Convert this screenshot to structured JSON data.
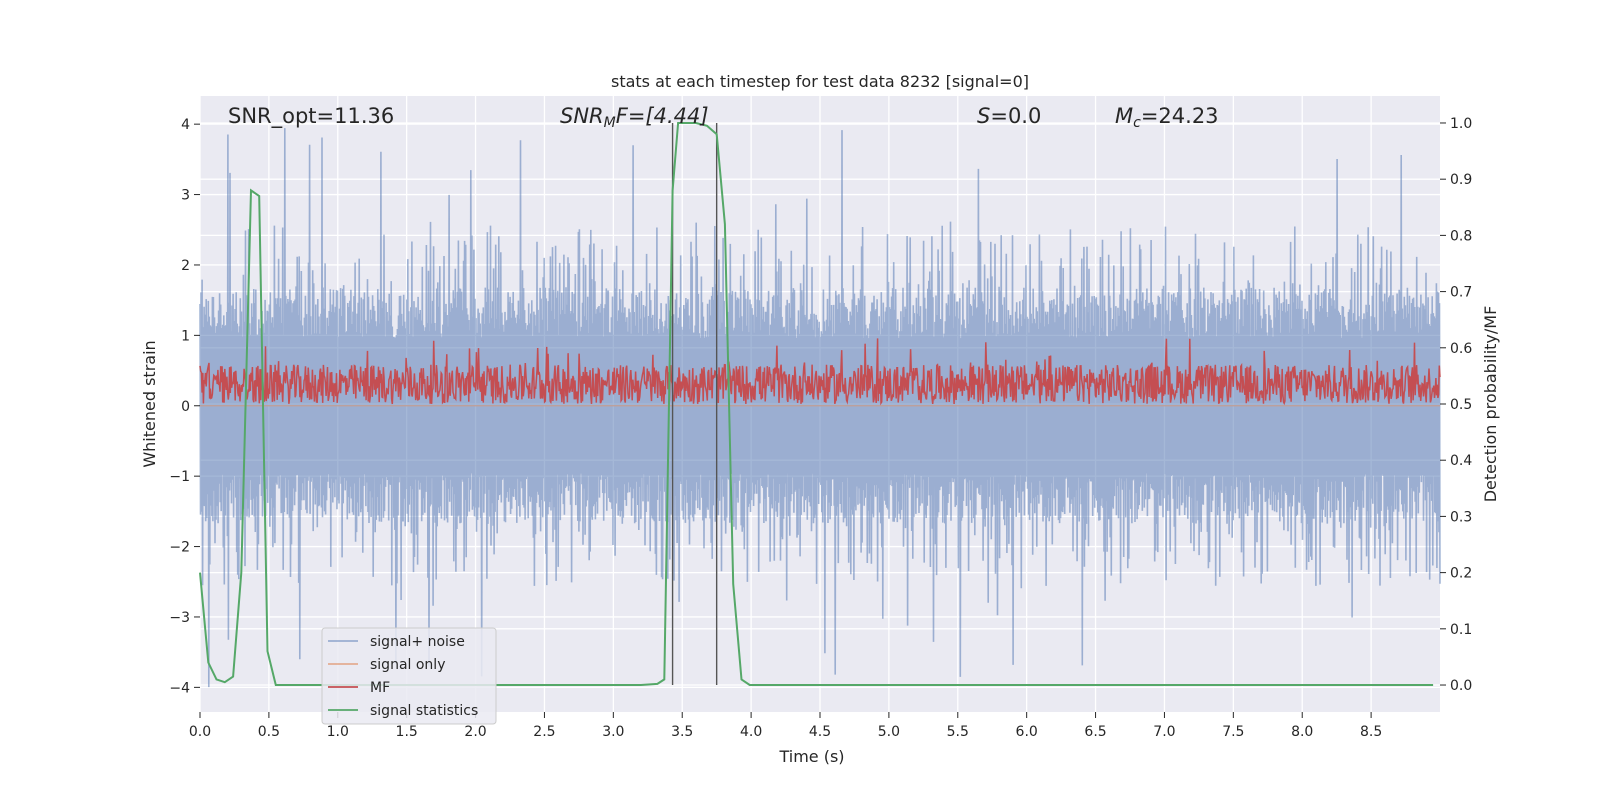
{
  "chart_data": {
    "type": "line",
    "title": "stats at each timestep for test data 8232 [signal=0]",
    "xlabel": "Time (s)",
    "ylabel": "Whitened strain",
    "y2label": "Detection probability/MF",
    "xlim": [
      0.0,
      9.0
    ],
    "ylim": [
      -4.35,
      4.4
    ],
    "y2lim": [
      -0.048,
      1.048
    ],
    "xticks": [
      0.0,
      0.5,
      1.0,
      1.5,
      2.0,
      2.5,
      3.0,
      3.5,
      4.0,
      4.5,
      5.0,
      5.5,
      6.0,
      6.5,
      7.0,
      7.5,
      8.0,
      8.5
    ],
    "xtick_labels": [
      "0.0",
      "0.5",
      "1.0",
      "1.5",
      "2.0",
      "2.5",
      "3.0",
      "3.5",
      "4.0",
      "4.5",
      "5.0",
      "5.5",
      "6.0",
      "6.5",
      "7.0",
      "7.5",
      "8.0",
      "8.5"
    ],
    "yticks": [
      4,
      3,
      2,
      1,
      0,
      -1,
      -2,
      -3,
      -4
    ],
    "ytick_labels": [
      "4",
      "3",
      "2",
      "1",
      "0",
      "−1",
      "−2",
      "−3",
      "−4"
    ],
    "y2ticks": [
      1.0,
      0.9,
      0.8,
      0.7,
      0.6,
      0.5,
      0.4,
      0.3,
      0.2,
      0.1,
      0.0
    ],
    "y2tick_labels": [
      "1.0",
      "0.9",
      "0.8",
      "0.7",
      "0.6",
      "0.5",
      "0.4",
      "0.3",
      "0.2",
      "0.1",
      "0.0"
    ],
    "annotations": {
      "snr_opt": "SNR_opt=11.36",
      "snr_mf_main": "SNR",
      "snr_mf_sub": "M",
      "snr_mf_rest": "F=[4.44]",
      "s_main": "S",
      "s_rest": "=0.0",
      "mc_main": "M",
      "mc_sub": "c",
      "mc_rest": "=24.23"
    },
    "vlines": [
      3.43,
      3.75
    ],
    "series": [
      {
        "name": "signal+ noise",
        "color": "#4c72b0",
        "opacity": 0.5,
        "axis": "left",
        "approx_band": {
          "upper_typical": 1.6,
          "lower_typical": -1.6,
          "spike_max": 4.0,
          "spike_min": -3.9
        }
      },
      {
        "name": "signal only",
        "color": "#dd8452",
        "opacity": 0.5,
        "axis": "left",
        "values_note": "flat at 0"
      },
      {
        "name": "MF",
        "color": "#c44e52",
        "axis": "right",
        "approx_band": {
          "baseline": 0.5,
          "typical_max": 0.55,
          "spike_max": 0.62
        }
      },
      {
        "name": "signal statistics",
        "color": "#55a868",
        "axis": "right",
        "x": [
          0.0,
          0.06,
          0.12,
          0.18,
          0.24,
          0.3,
          0.37,
          0.43,
          0.49,
          0.55,
          0.8,
          1.5,
          2.5,
          3.2,
          3.32,
          3.37,
          3.43,
          3.47,
          3.53,
          3.6,
          3.68,
          3.75,
          3.81,
          3.87,
          3.93,
          3.99,
          4.5,
          6.0,
          8.0,
          8.95
        ],
        "y": [
          0.2,
          0.04,
          0.01,
          0.005,
          0.015,
          0.2,
          0.88,
          0.87,
          0.06,
          0.0,
          0.0,
          0.0,
          0.0,
          0.0,
          0.002,
          0.01,
          0.88,
          1.0,
          1.0,
          1.0,
          0.995,
          0.98,
          0.82,
          0.18,
          0.01,
          0.0,
          0.0,
          0.0,
          0.0,
          0.0
        ]
      }
    ],
    "legend": {
      "position": "lower-left",
      "entries": [
        "signal+ noise",
        "signal only",
        "MF",
        "signal statistics"
      ]
    }
  }
}
